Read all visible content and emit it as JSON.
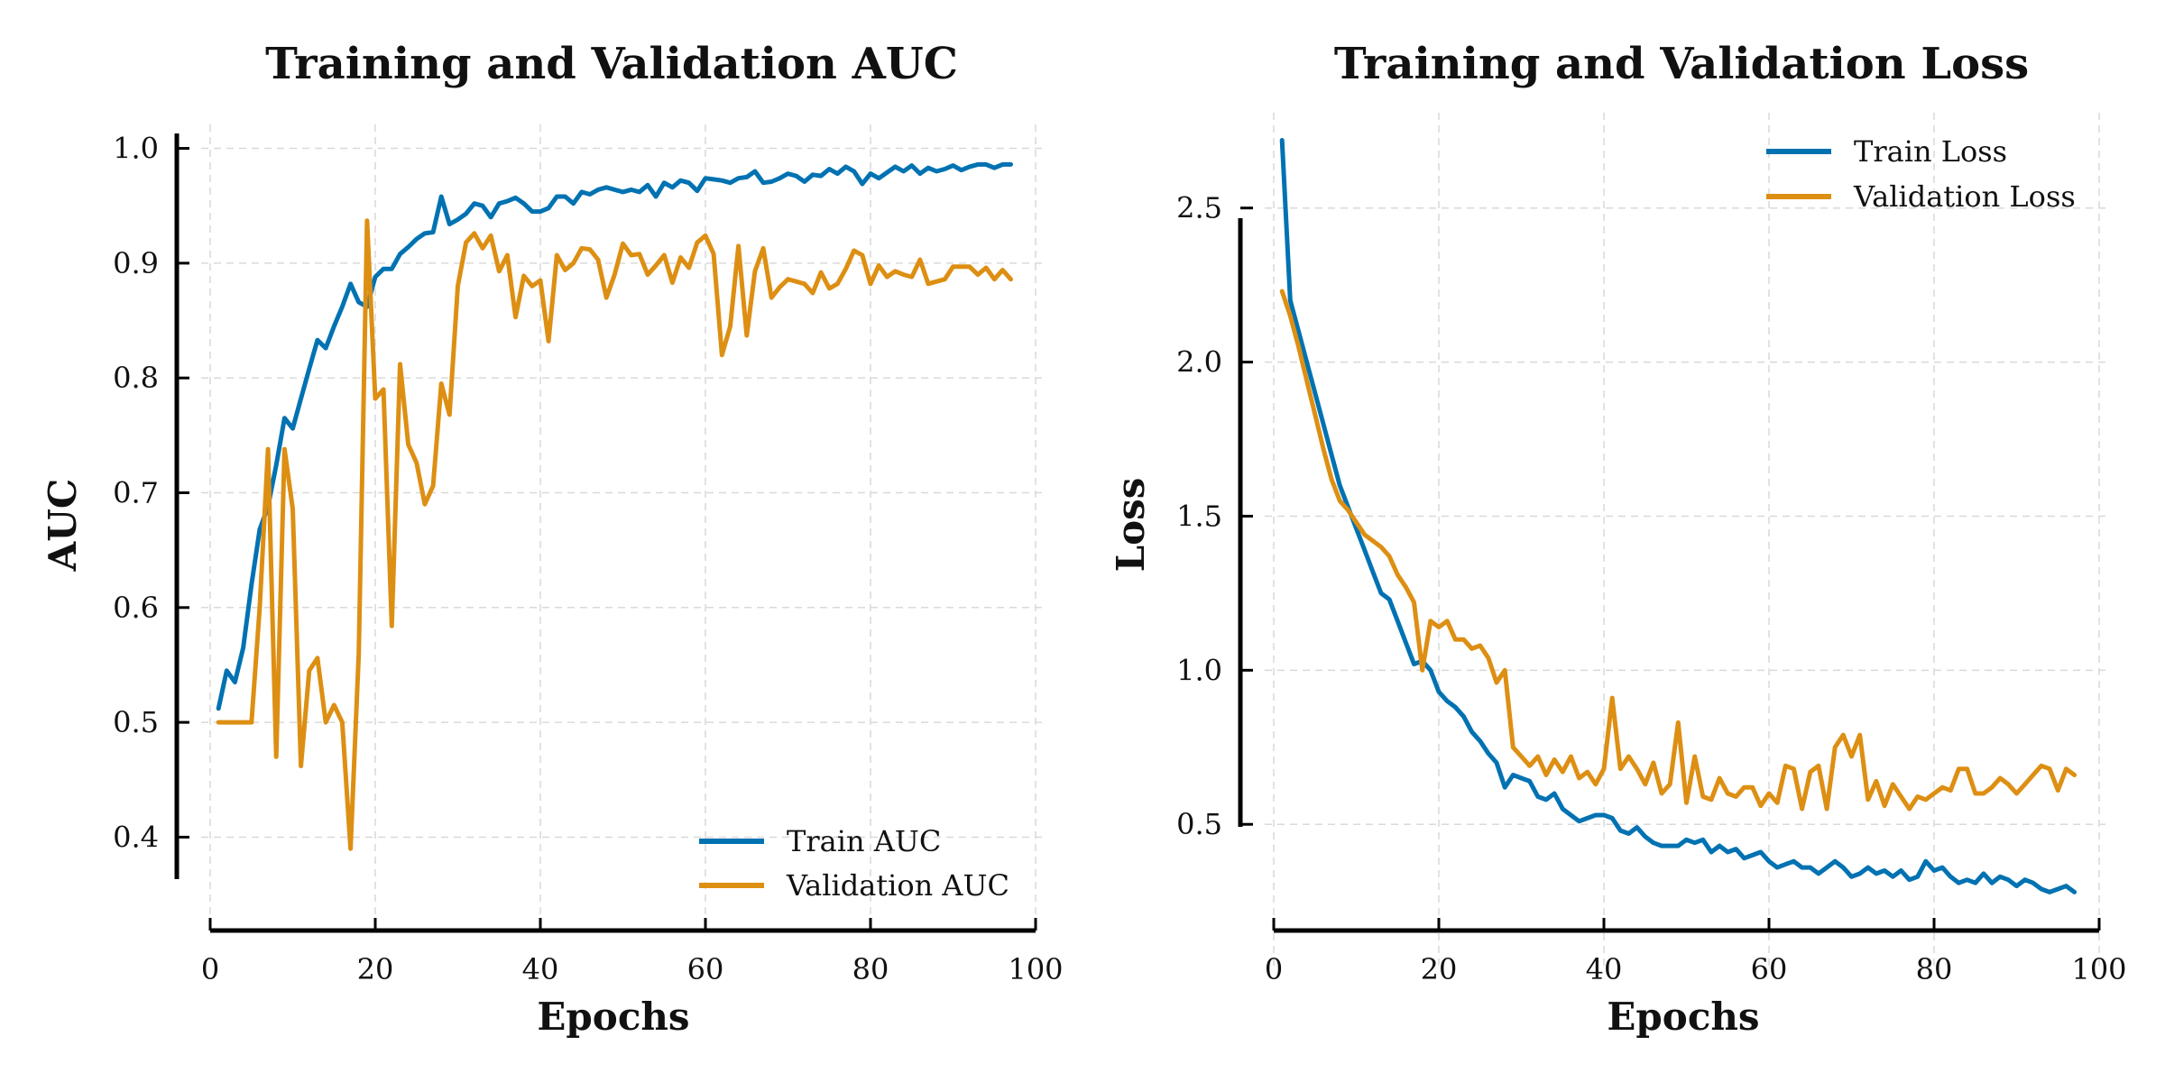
{
  "colors": {
    "train": "#0072b2",
    "validation": "#dd8f13",
    "axis": "#000000",
    "grid": "#d9d9d9"
  },
  "chart_data": [
    {
      "type": "line",
      "title": "Training and Validation AUC",
      "xlabel": "Epochs",
      "ylabel": "AUC",
      "xlim": [
        0,
        100
      ],
      "ylim": [
        0.365,
        1.013
      ],
      "xticks": [
        0,
        20,
        40,
        60,
        80,
        100
      ],
      "yticks": [
        0.4,
        0.5,
        0.6,
        0.7,
        0.8,
        0.9,
        1.0
      ],
      "ytick_labels": [
        "0.4",
        "0.5",
        "0.6",
        "0.7",
        "0.8",
        "0.9",
        "1.0"
      ],
      "grid": true,
      "legend_position": "lower-right",
      "x_start": 1,
      "series": [
        {
          "name": "Train AUC",
          "color_key": "train",
          "values": [
            0.512,
            0.545,
            0.535,
            0.565,
            0.62,
            0.668,
            0.688,
            0.724,
            0.765,
            0.756,
            0.782,
            0.808,
            0.833,
            0.826,
            0.845,
            0.862,
            0.882,
            0.866,
            0.862,
            0.888,
            0.895,
            0.895,
            0.908,
            0.914,
            0.921,
            0.926,
            0.927,
            0.958,
            0.934,
            0.938,
            0.943,
            0.952,
            0.95,
            0.94,
            0.952,
            0.954,
            0.957,
            0.952,
            0.945,
            0.945,
            0.948,
            0.958,
            0.958,
            0.952,
            0.962,
            0.96,
            0.964,
            0.966,
            0.964,
            0.962,
            0.964,
            0.962,
            0.968,
            0.958,
            0.97,
            0.966,
            0.972,
            0.97,
            0.963,
            0.974,
            0.973,
            0.972,
            0.97,
            0.974,
            0.975,
            0.98,
            0.97,
            0.971,
            0.974,
            0.978,
            0.976,
            0.971,
            0.977,
            0.976,
            0.982,
            0.978,
            0.984,
            0.98,
            0.969,
            0.978,
            0.974,
            0.979,
            0.984,
            0.98,
            0.985,
            0.978,
            0.983,
            0.98,
            0.982,
            0.985,
            0.981,
            0.984,
            0.986,
            0.986,
            0.983,
            0.986,
            0.986
          ]
        },
        {
          "name": "Validation AUC",
          "color_key": "validation",
          "values": [
            0.5,
            0.5,
            0.5,
            0.5,
            0.5,
            0.6,
            0.738,
            0.47,
            0.738,
            0.686,
            0.462,
            0.545,
            0.556,
            0.5,
            0.515,
            0.5,
            0.39,
            0.56,
            0.937,
            0.782,
            0.79,
            0.584,
            0.812,
            0.742,
            0.726,
            0.69,
            0.706,
            0.795,
            0.768,
            0.88,
            0.918,
            0.926,
            0.913,
            0.924,
            0.893,
            0.907,
            0.853,
            0.889,
            0.88,
            0.885,
            0.832,
            0.907,
            0.894,
            0.9,
            0.913,
            0.912,
            0.903,
            0.87,
            0.89,
            0.917,
            0.907,
            0.908,
            0.89,
            0.898,
            0.907,
            0.883,
            0.905,
            0.896,
            0.918,
            0.924,
            0.908,
            0.82,
            0.845,
            0.915,
            0.837,
            0.893,
            0.913,
            0.87,
            0.879,
            0.886,
            0.884,
            0.882,
            0.874,
            0.892,
            0.878,
            0.882,
            0.895,
            0.911,
            0.907,
            0.882,
            0.898,
            0.888,
            0.893,
            0.89,
            0.888,
            0.903,
            0.882,
            0.884,
            0.886,
            0.897,
            0.897,
            0.897,
            0.89,
            0.896,
            0.886,
            0.894,
            0.886
          ]
        }
      ]
    },
    {
      "type": "line",
      "title": "Training and Validation Loss",
      "xlabel": "Epochs",
      "ylabel": "Loss",
      "xlim": [
        0,
        100
      ],
      "ylim": [
        0.17,
        2.78
      ],
      "xticks": [
        0,
        20,
        40,
        60,
        80,
        100
      ],
      "yticks": [
        0.5,
        1.0,
        1.5,
        2.0,
        2.5
      ],
      "ytick_labels": [
        "0.5",
        "1.0",
        "1.5",
        "2.0",
        "2.5"
      ],
      "grid": true,
      "legend_position": "top-right",
      "x_start": 1,
      "series": [
        {
          "name": "Train Loss",
          "color_key": "train",
          "values": [
            2.72,
            2.2,
            2.1,
            2.0,
            1.9,
            1.8,
            1.7,
            1.6,
            1.53,
            1.46,
            1.39,
            1.32,
            1.25,
            1.23,
            1.16,
            1.09,
            1.02,
            1.03,
            1.0,
            0.93,
            0.9,
            0.88,
            0.85,
            0.8,
            0.77,
            0.73,
            0.7,
            0.62,
            0.66,
            0.65,
            0.64,
            0.59,
            0.58,
            0.6,
            0.55,
            0.53,
            0.51,
            0.52,
            0.53,
            0.53,
            0.52,
            0.48,
            0.47,
            0.49,
            0.46,
            0.44,
            0.43,
            0.43,
            0.43,
            0.45,
            0.44,
            0.45,
            0.41,
            0.43,
            0.41,
            0.42,
            0.39,
            0.4,
            0.41,
            0.38,
            0.36,
            0.37,
            0.38,
            0.36,
            0.36,
            0.34,
            0.36,
            0.38,
            0.36,
            0.33,
            0.34,
            0.36,
            0.34,
            0.35,
            0.33,
            0.35,
            0.32,
            0.33,
            0.38,
            0.35,
            0.36,
            0.33,
            0.31,
            0.32,
            0.31,
            0.34,
            0.31,
            0.33,
            0.32,
            0.3,
            0.32,
            0.31,
            0.29,
            0.28,
            0.29,
            0.3,
            0.28
          ]
        },
        {
          "name": "Validation Loss",
          "color_key": "validation",
          "values": [
            2.23,
            2.15,
            2.05,
            1.94,
            1.83,
            1.72,
            1.62,
            1.55,
            1.52,
            1.48,
            1.44,
            1.42,
            1.4,
            1.37,
            1.31,
            1.27,
            1.22,
            1.0,
            1.16,
            1.14,
            1.16,
            1.1,
            1.1,
            1.07,
            1.08,
            1.04,
            0.96,
            1.0,
            0.75,
            0.72,
            0.69,
            0.72,
            0.66,
            0.71,
            0.67,
            0.72,
            0.65,
            0.67,
            0.63,
            0.68,
            0.91,
            0.68,
            0.72,
            0.68,
            0.63,
            0.7,
            0.6,
            0.63,
            0.83,
            0.57,
            0.72,
            0.59,
            0.58,
            0.65,
            0.6,
            0.59,
            0.62,
            0.62,
            0.56,
            0.6,
            0.57,
            0.69,
            0.68,
            0.55,
            0.67,
            0.69,
            0.55,
            0.75,
            0.79,
            0.72,
            0.79,
            0.58,
            0.64,
            0.56,
            0.63,
            0.59,
            0.55,
            0.59,
            0.58,
            0.6,
            0.62,
            0.61,
            0.68,
            0.68,
            0.6,
            0.6,
            0.62,
            0.65,
            0.63,
            0.6,
            0.63,
            0.66,
            0.69,
            0.68,
            0.61,
            0.68,
            0.66
          ]
        }
      ]
    }
  ]
}
